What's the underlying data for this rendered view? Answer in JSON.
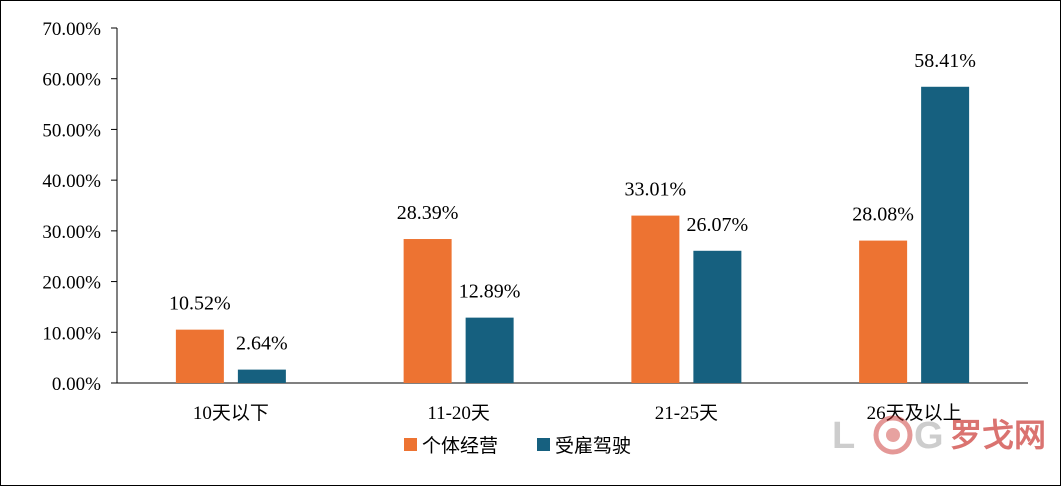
{
  "chart_data": {
    "type": "bar",
    "categories": [
      "10天以下",
      "11-20天",
      "21-25天",
      "26天及以上"
    ],
    "series": [
      {
        "name": "个体经营",
        "values": [
          10.52,
          28.39,
          33.01,
          28.08
        ],
        "labels": [
          "10.52%",
          "28.39%",
          "33.01%",
          "28.08%"
        ],
        "color": "#ED7332"
      },
      {
        "name": "受雇驾驶",
        "values": [
          2.64,
          12.89,
          26.07,
          58.41
        ],
        "labels": [
          "2.64%",
          "12.89%",
          "26.07%",
          "58.41%"
        ],
        "color": "#16607F"
      }
    ],
    "yticks": [
      "0.00%",
      "10.00%",
      "20.00%",
      "30.00%",
      "40.00%",
      "50.00%",
      "60.00%",
      "70.00%"
    ],
    "ylim": [
      0,
      70
    ],
    "grid": false,
    "legend_position": "bottom",
    "title": "",
    "xlabel": "",
    "ylabel": ""
  },
  "watermark": {
    "text_grey": "L",
    "text_grey2": "G",
    "text_red": "罗戈网",
    "accent": "#c9302c"
  }
}
